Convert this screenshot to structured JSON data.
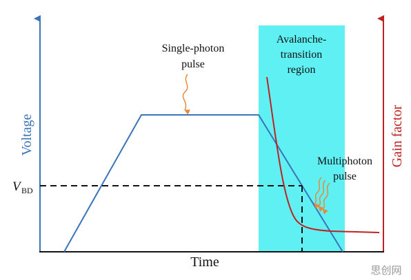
{
  "axes": {
    "left": "Voltage",
    "right": "Gain factor",
    "bottom": "Time"
  },
  "threshold": {
    "symbol": "V",
    "subscript": "BD"
  },
  "annotations": {
    "single_photon": [
      "Single-photon",
      "pulse"
    ],
    "avalanche": [
      "Avalanche-",
      "transition",
      "region"
    ],
    "multiphoton": [
      "Multiphoton",
      "pulse"
    ]
  },
  "watermark": "思创网"
}
